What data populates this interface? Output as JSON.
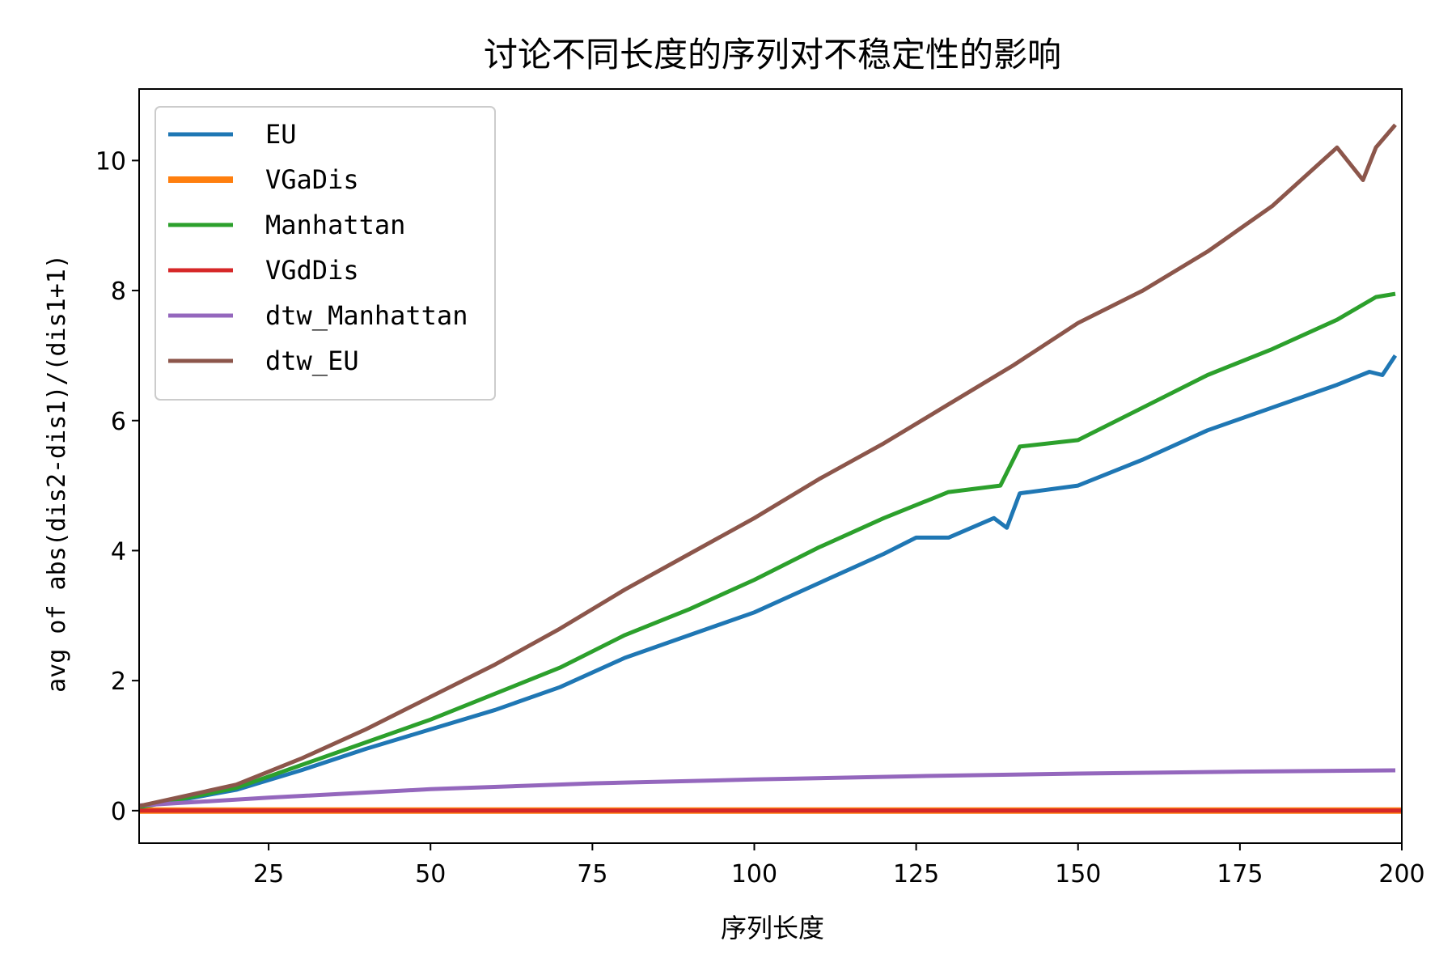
{
  "chart_data": {
    "type": "line",
    "title": "讨论不同长度的序列对不稳定性的影响",
    "xlabel": "序列长度",
    "ylabel": "avg of abs(dis2-dis1)/(dis1+1)",
    "xlim": [
      5,
      200
    ],
    "ylim": [
      -0.5,
      11.1
    ],
    "xticks": [
      25,
      50,
      75,
      100,
      125,
      150,
      175,
      200
    ],
    "yticks": [
      0,
      2,
      4,
      6,
      8,
      10
    ],
    "grid": false,
    "legend_position": "upper-left",
    "series": [
      {
        "name": "EU",
        "color": "#1f77b4",
        "x": [
          5,
          20,
          30,
          40,
          50,
          60,
          70,
          80,
          90,
          100,
          110,
          120,
          125,
          130,
          137,
          139,
          141,
          150,
          160,
          170,
          180,
          190,
          195,
          197,
          199
        ],
        "y": [
          0.05,
          0.32,
          0.62,
          0.95,
          1.25,
          1.55,
          1.9,
          2.35,
          2.7,
          3.05,
          3.5,
          3.95,
          4.2,
          4.2,
          4.5,
          4.35,
          4.88,
          5.0,
          5.4,
          5.85,
          6.2,
          6.55,
          6.75,
          6.7,
          7.0
        ]
      },
      {
        "name": "VGaDis",
        "color": "#ff7f0e",
        "x": [
          5,
          50,
          100,
          150,
          200
        ],
        "y": [
          0.0,
          0.0,
          0.0,
          0.0,
          0.0
        ]
      },
      {
        "name": "Manhattan",
        "color": "#2ca02c",
        "x": [
          5,
          20,
          30,
          40,
          50,
          60,
          70,
          80,
          90,
          100,
          110,
          120,
          130,
          138,
          141,
          150,
          160,
          170,
          180,
          190,
          196,
          199
        ],
        "y": [
          0.05,
          0.35,
          0.7,
          1.05,
          1.4,
          1.8,
          2.2,
          2.7,
          3.1,
          3.55,
          4.05,
          4.5,
          4.9,
          5.0,
          5.6,
          5.7,
          6.2,
          6.7,
          7.1,
          7.55,
          7.9,
          7.95
        ]
      },
      {
        "name": "VGdDis",
        "color": "#d62728",
        "x": [
          5,
          50,
          100,
          150,
          200
        ],
        "y": [
          0.0,
          0.0,
          0.0,
          0.0,
          0.0
        ]
      },
      {
        "name": "dtw_Manhattan",
        "color": "#9467bd",
        "x": [
          5,
          25,
          50,
          75,
          100,
          125,
          150,
          175,
          199
        ],
        "y": [
          0.08,
          0.2,
          0.33,
          0.42,
          0.48,
          0.53,
          0.57,
          0.6,
          0.62
        ]
      },
      {
        "name": "dtw_EU",
        "color": "#8c564b",
        "x": [
          5,
          20,
          30,
          40,
          50,
          60,
          70,
          80,
          90,
          100,
          110,
          120,
          130,
          140,
          150,
          160,
          170,
          180,
          190,
          194,
          196,
          199
        ],
        "y": [
          0.07,
          0.4,
          0.8,
          1.25,
          1.75,
          2.25,
          2.8,
          3.4,
          3.95,
          4.5,
          5.1,
          5.65,
          6.25,
          6.85,
          7.5,
          8.0,
          8.6,
          9.3,
          10.2,
          9.7,
          10.2,
          10.55
        ]
      }
    ]
  }
}
